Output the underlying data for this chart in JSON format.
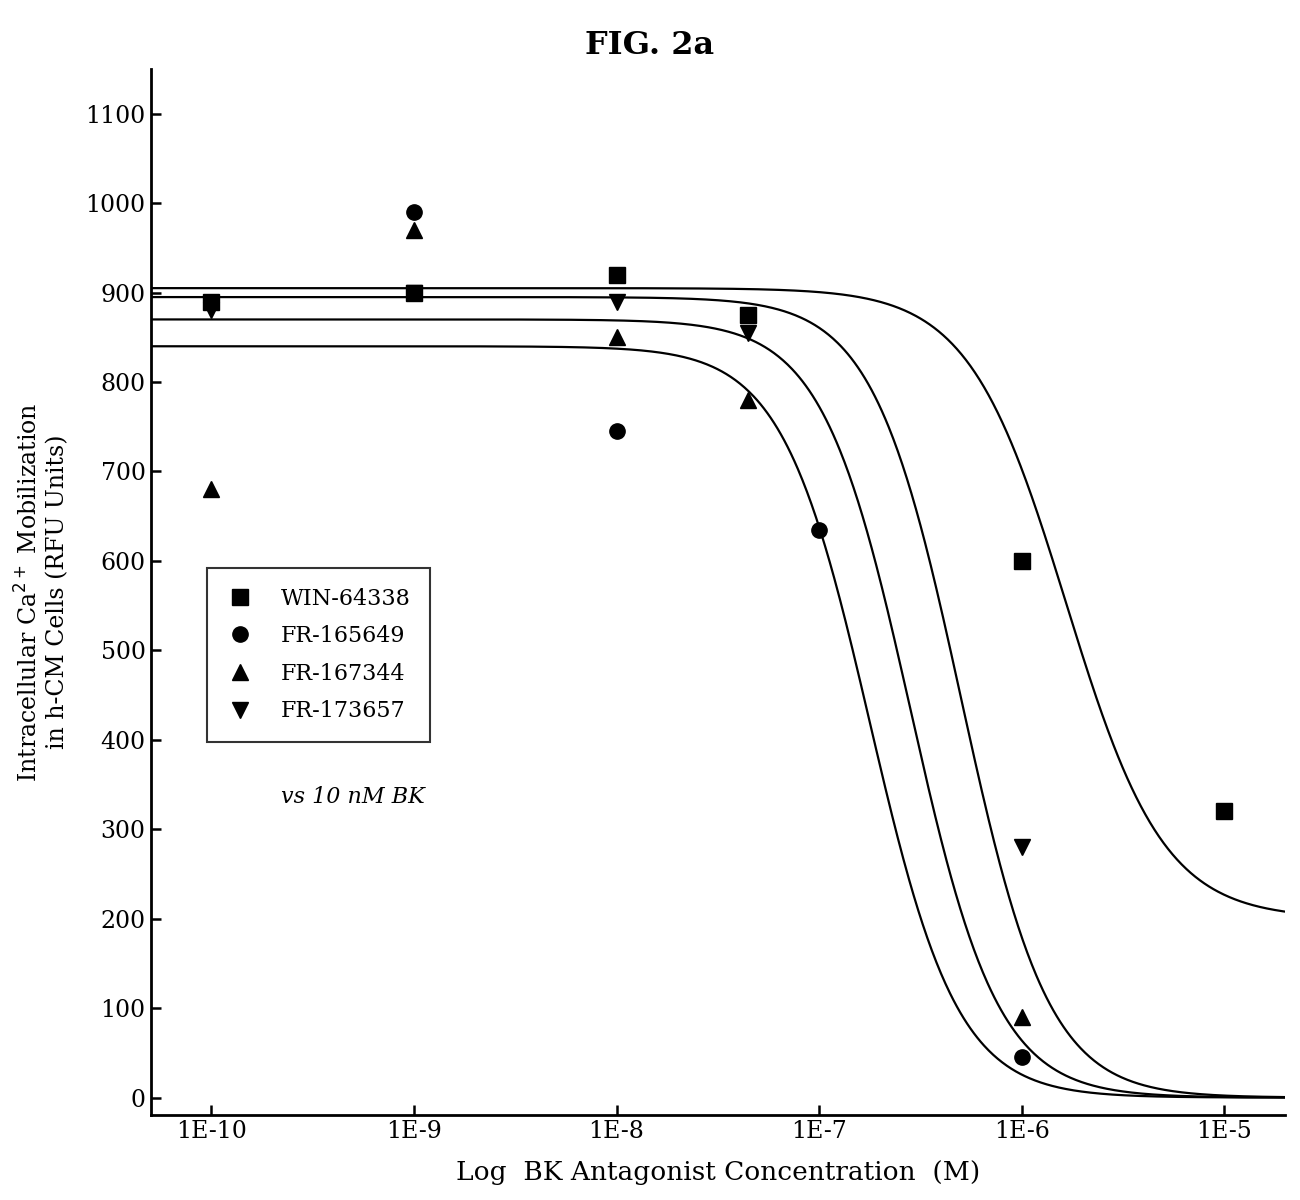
{
  "title": "FIG. 2a",
  "xlabel": "Log  BK Antagonist Concentration  (M)",
  "ylabel": "Intracellular Ca$^{2+}$ Mobilization\nin h-CM Cells (RFU Units)",
  "xlim": [
    -10.3,
    -4.7
  ],
  "ylim": [
    -20,
    1150
  ],
  "yticks": [
    0,
    100,
    200,
    300,
    400,
    500,
    600,
    700,
    800,
    900,
    1000,
    1100
  ],
  "xtick_positions": [
    -10,
    -9,
    -8,
    -7,
    -6,
    -5
  ],
  "xtick_labels": [
    "1E-10",
    "1E-9",
    "1E-8",
    "1E-7",
    "1E-6",
    "1E-5"
  ],
  "series": [
    {
      "name": "WIN-64338",
      "marker": "s",
      "marker_size": 11,
      "data_x": [
        -10,
        -9,
        -8,
        -7.35,
        -6,
        -5
      ],
      "data_y": [
        890,
        900,
        920,
        875,
        600,
        320
      ],
      "top": 905,
      "bottom": 200,
      "ec50_log": -5.78,
      "n": 1.8
    },
    {
      "name": "FR-165649",
      "marker": "o",
      "marker_size": 11,
      "data_x": [
        -9,
        -8,
        -7,
        -6
      ],
      "data_y": [
        990,
        745,
        635,
        45
      ],
      "top": 840,
      "bottom": 0,
      "ec50_log": -6.75,
      "n": 2.0
    },
    {
      "name": "FR-167344",
      "marker": "^",
      "marker_size": 12,
      "data_x": [
        -10,
        -9,
        -8,
        -7.35,
        -6
      ],
      "data_y": [
        680,
        970,
        850,
        780,
        90
      ],
      "top": 870,
      "bottom": 0,
      "ec50_log": -6.55,
      "n": 2.0
    },
    {
      "name": "FR-173657",
      "marker": "v",
      "marker_size": 11,
      "data_x": [
        -10,
        -9,
        -8,
        -7.35,
        -6
      ],
      "data_y": [
        880,
        900,
        890,
        855,
        280
      ],
      "top": 895,
      "bottom": 0,
      "ec50_log": -6.3,
      "n": 2.0
    }
  ],
  "legend_labels": [
    "WIN-64338",
    "FR-165649",
    "FR-167344",
    "FR-173657"
  ],
  "legend_markers": [
    "s",
    "o",
    "^",
    "v"
  ],
  "legend_note": "vs 10 nM BK",
  "background_color": "#ffffff"
}
